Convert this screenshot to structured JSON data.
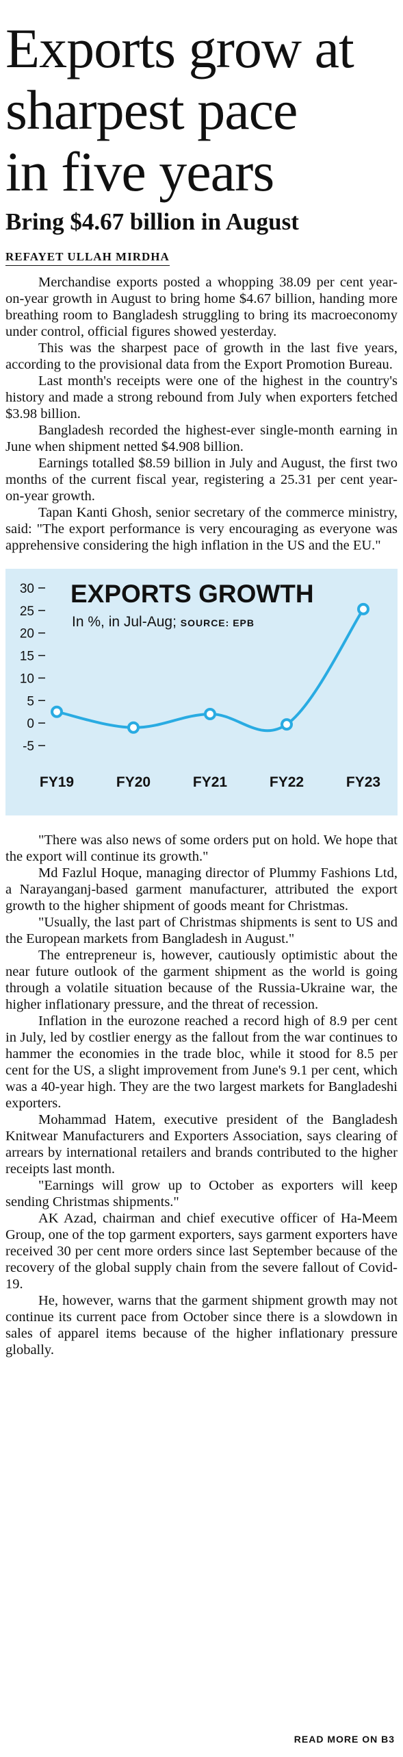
{
  "article": {
    "headline_lines": [
      "Exports grow at",
      "sharpest pace",
      "in five years"
    ],
    "subheadline": "Bring $4.67 billion in August",
    "byline": "REFAYET ULLAH MIRDHA",
    "paragraphs_top": [
      "Merchandise exports posted a whopping 38.09 per cent year-on-year growth in August to bring home $4.67 billion, handing more breathing room to Bangladesh struggling to bring its macroeconomy under control, official figures showed yesterday.",
      "This was the sharpest pace of growth in the last five years, according to the provisional data from the Export Promotion Bureau.",
      "Last month's receipts were one of the highest in the country's history and made a strong rebound from July when exporters fetched $3.98 billion.",
      "Bangladesh recorded the highest-ever single-month earning in June when shipment netted $4.908 billion.",
      "Earnings totalled $8.59 billion in July and August, the first two months of the current fiscal year, registering a 25.31 per cent year-on-year growth.",
      "Tapan Kanti Ghosh, senior secretary of the commerce ministry, said: \"The export performance is very encouraging as everyone was apprehensive considering the high inflation in the US and the EU.\""
    ],
    "paragraphs_bottom": [
      "\"There was also news of some orders put on hold. We hope that the export will continue its growth.\"",
      "Md Fazlul Hoque, managing director of Plummy Fashions Ltd, a Narayanganj-based garment manufacturer, attributed the export growth to the higher shipment of goods meant for Christmas.",
      "\"Usually, the last part of Christmas shipments is sent to US and the European markets from Bangladesh in August.\"",
      "The entrepreneur is, however, cautiously optimistic about the near future outlook of the garment shipment as the world is going through a volatile situation because of the Russia-Ukraine war, the higher inflationary pressure, and the threat of recession.",
      "Inflation in the eurozone reached a record high of 8.9 per cent in July, led by costlier energy as the fallout from the war continues to hammer the economies in the trade bloc, while it stood for 8.5 per cent for the US, a slight improvement from June's 9.1 per cent, which was a 40-year high. They are the two largest markets for Bangladeshi exporters.",
      "Mohammad Hatem, executive president of the Bangladesh Knitwear Manufacturers and Exporters Association, says clearing of arrears by international retailers and brands contributed to the higher receipts last month.",
      "\"Earnings will grow up to October as exporters will keep sending Christmas shipments.\"",
      "AK Azad, chairman and chief executive officer of Ha-Meem Group, one of the top garment exporters, says garment exporters have received 30 per cent more orders since last September because of the recovery of the global supply chain from the severe fallout of Covid-19.",
      "He, however, warns that the garment shipment growth may not continue its current pace from October since there is a slowdown in sales of apparel items because of the higher inflationary pressure globally."
    ],
    "read_more": "READ MORE ON B3"
  },
  "colors": {
    "chart_background": "#d7ecf7",
    "line": "#29abe2",
    "text": "#111111"
  },
  "chart_data": {
    "type": "line",
    "title": "EXPORTS GROWTH",
    "subtitle": "In %, in Jul-Aug;",
    "source": "SOURCE: EPB",
    "categories": [
      "FY19",
      "FY20",
      "FY21",
      "FY22",
      "FY23"
    ],
    "series": [
      {
        "values": [
          2.5,
          -1,
          2,
          -0.3,
          25.3
        ]
      }
    ],
    "yticks": [
      30,
      25,
      20,
      15,
      10,
      5,
      0,
      -5
    ],
    "ytick_labels": [
      "30",
      "25",
      "20",
      "15",
      "10",
      "5",
      "0",
      "-5"
    ],
    "ylim": [
      -5,
      30
    ],
    "grid": false,
    "legend": "none"
  }
}
